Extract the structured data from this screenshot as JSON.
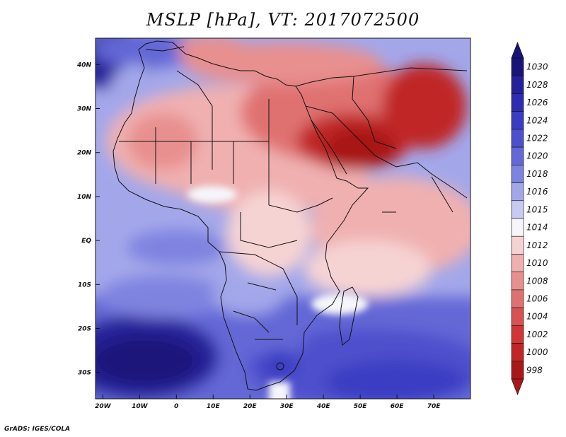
{
  "title": "MSLP [hPa], VT: 2017072500",
  "footer": "GrADS: IGES/COLA",
  "map": {
    "lon_range": [
      -22,
      80
    ],
    "lat_range": [
      -36,
      46
    ],
    "x_ticks": [
      {
        "lon": -20,
        "label": "20W"
      },
      {
        "lon": -10,
        "label": "10W"
      },
      {
        "lon": 0,
        "label": "0"
      },
      {
        "lon": 10,
        "label": "10E"
      },
      {
        "lon": 20,
        "label": "20E"
      },
      {
        "lon": 30,
        "label": "30E"
      },
      {
        "lon": 40,
        "label": "40E"
      },
      {
        "lon": 50,
        "label": "50E"
      },
      {
        "lon": 60,
        "label": "60E"
      },
      {
        "lon": 70,
        "label": "70E"
      }
    ],
    "y_ticks": [
      {
        "lat": 40,
        "label": "40N"
      },
      {
        "lat": 30,
        "label": "30N"
      },
      {
        "lat": 20,
        "label": "20N"
      },
      {
        "lat": 10,
        "label": "10N"
      },
      {
        "lat": 0,
        "label": "EQ"
      },
      {
        "lat": -10,
        "label": "10S"
      },
      {
        "lat": -20,
        "label": "20S"
      },
      {
        "lat": -30,
        "label": "30S"
      }
    ]
  },
  "colorbar": {
    "levels": [
      {
        "label": "1030",
        "color": "#1a137a"
      },
      {
        "label": "1028",
        "color": "#25209a"
      },
      {
        "label": "1026",
        "color": "#2e2cb0"
      },
      {
        "label": "1024",
        "color": "#3b3cc2"
      },
      {
        "label": "1022",
        "color": "#4d50cc"
      },
      {
        "label": "1020",
        "color": "#6467d6"
      },
      {
        "label": "1018",
        "color": "#7f83e0"
      },
      {
        "label": "1016",
        "color": "#a3a7ea"
      },
      {
        "label": "1015",
        "color": "#c8caf2"
      },
      {
        "label": "1014",
        "color": "#f6f6fa"
      },
      {
        "label": "1012",
        "color": "#f6d3d3"
      },
      {
        "label": "1010",
        "color": "#f0b0b0"
      },
      {
        "label": "1008",
        "color": "#e88f8f"
      },
      {
        "label": "1006",
        "color": "#e07171"
      },
      {
        "label": "1004",
        "color": "#d85252"
      },
      {
        "label": "1002",
        "color": "#d03636"
      },
      {
        "label": "1000",
        "color": "#c02626"
      },
      {
        "label": "998",
        "color": "#a81818"
      }
    ]
  }
}
